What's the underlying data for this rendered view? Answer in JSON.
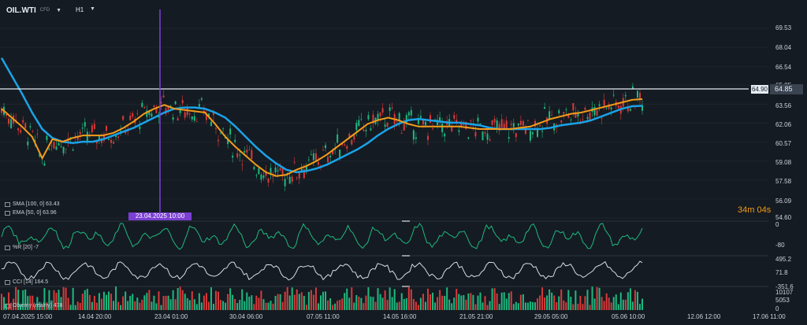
{
  "header": {
    "symbol": "OIL.WTI",
    "symbol_sub": "CFD",
    "timeframe": "H1"
  },
  "price_axis": [
    "69.53",
    "68.04",
    "66.54",
    "65.05",
    "63.56",
    "62.06",
    "60.57",
    "59.08",
    "57.58",
    "56.09",
    "54.60"
  ],
  "price_tags": {
    "horizontal_line": "64.90",
    "current": "64.85"
  },
  "date_marker": "23.04.2025 10:00",
  "countdown": "34m 04s",
  "indicators": {
    "sma": "SMA [100, 0]  63.43",
    "ema": "EMA [50, 0]  63.96",
    "wr": "%R [20]  -7",
    "cci": "CCI [14]  164.5",
    "volume": "Objemy (reálny)  478"
  },
  "wr_axis": [
    "0",
    "-80"
  ],
  "cci_axis": [
    "495.2",
    "71.8",
    "-351.6"
  ],
  "vol_axis": [
    "10107",
    "5053",
    "0"
  ],
  "time_axis": [
    "07.04.2025  15:00",
    "14.04  20:00",
    "23.04  01:00",
    "30.04  06:00",
    "07.05  11:00",
    "14.05  16:00",
    "21.05  21:00",
    "29.05  05:00",
    "05.06  10:00",
    "12.06  12:00",
    "17.06  11:00"
  ],
  "colors": {
    "sma": "#1aa3e8",
    "ema": "#f39c1a",
    "wr": "#1db980",
    "cci": "#d8dde3",
    "up": "#1db980",
    "down": "#d83a3a",
    "marker": "#7b3fd4"
  },
  "chart_data": {
    "type": "line",
    "series": [
      {
        "name": "SMA [100, 0]",
        "values": [
          67.2,
          65.8,
          64.4,
          62.9,
          61.6,
          60.9,
          60.6,
          60.5,
          60.6,
          60.6,
          60.8,
          61.1,
          61.4,
          61.7,
          62.1,
          62.5,
          62.9,
          63.2,
          63.3,
          63.3,
          63.2,
          62.9,
          62.5,
          61.8,
          61.0,
          60.2,
          59.5,
          58.9,
          58.4,
          58.2,
          58.3,
          58.5,
          58.8,
          59.2,
          59.6,
          60.0,
          60.5,
          61.1,
          61.6,
          62.0,
          62.3,
          62.4,
          62.3,
          62.2,
          62.1,
          62.1,
          62.0,
          61.9,
          61.7,
          61.6,
          61.6,
          61.6,
          61.6,
          61.6,
          61.7,
          61.9,
          62.0,
          62.1,
          62.3,
          62.6,
          62.9,
          63.2,
          63.4,
          63.43
        ]
      },
      {
        "name": "EMA [50, 0]",
        "values": [
          63.2,
          62.5,
          61.8,
          61.0,
          59.3,
          60.8,
          60.6,
          60.9,
          61.1,
          61.1,
          61.1,
          61.3,
          61.7,
          62.2,
          62.8,
          63.2,
          63.5,
          63.2,
          63.1,
          63.0,
          62.9,
          62.0,
          61.0,
          60.2,
          59.5,
          58.8,
          58.2,
          57.9,
          58.0,
          58.4,
          58.7,
          59.1,
          59.6,
          60.2,
          60.8,
          61.4,
          62.0,
          62.3,
          62.5,
          62.3,
          62.0,
          61.8,
          61.8,
          61.8,
          61.8,
          61.8,
          61.7,
          61.6,
          61.6,
          61.6,
          61.6,
          61.7,
          61.8,
          62.1,
          62.4,
          62.6,
          62.8,
          62.9,
          63.1,
          63.3,
          63.5,
          63.7,
          63.9,
          63.96
        ]
      }
    ],
    "ylim": [
      54.6,
      69.53
    ]
  }
}
